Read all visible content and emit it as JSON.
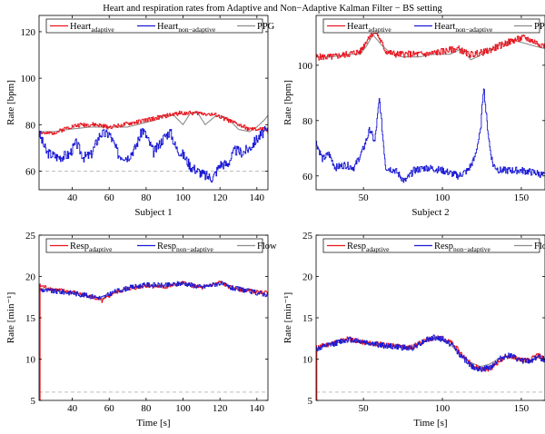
{
  "figure_title": "Heart and respiration rates from Adaptive and Non−Adaptive Kalman Filter − BS setting",
  "colors": {
    "adaptive": "#e8141e",
    "non_adaptive": "#1a1ad6",
    "reference": "#8c8c8c",
    "dashed": "#bdbdbd",
    "axis": "#000000"
  },
  "chart_data": [
    {
      "id": "hr1",
      "type": "line",
      "xlabel": "Subject 1",
      "ylabel": "Rate [bpm]",
      "xlim": [
        22,
        146
      ],
      "ylim": [
        52,
        127
      ],
      "xticks": [
        40,
        60,
        80,
        100,
        120,
        140
      ],
      "yticks": [
        60,
        80,
        100,
        120
      ],
      "dashed_y": 60,
      "legend": [
        {
          "base": "Heart",
          "sub": "adaptive",
          "color_key": "adaptive"
        },
        {
          "base": "Heart",
          "sub": "non−adaptive",
          "color_key": "non_adaptive"
        },
        {
          "base": "PPG",
          "sub": "",
          "color_key": "reference"
        }
      ],
      "series": [
        {
          "name": "PPG",
          "color_key": "reference",
          "noise": 0,
          "seed": 1,
          "x": [
            22,
            30,
            38,
            50,
            60,
            70,
            75,
            80,
            85,
            90,
            95,
            100,
            104,
            108,
            112,
            118,
            124,
            130,
            136,
            140,
            144,
            146
          ],
          "y": [
            77,
            77,
            78,
            79,
            79,
            79,
            80,
            81,
            82,
            84,
            84,
            80,
            85,
            85,
            80,
            84,
            83,
            78,
            77,
            79,
            82,
            84
          ]
        },
        {
          "name": "Heart adaptive",
          "color_key": "adaptive",
          "noise": 0.9,
          "seed": 2,
          "x": [
            22,
            26,
            32,
            38,
            45,
            52,
            60,
            68,
            74,
            80,
            86,
            92,
            98,
            104,
            110,
            118,
            124,
            130,
            136,
            140,
            146
          ],
          "y": [
            77,
            76,
            77,
            79,
            80,
            80,
            79,
            80,
            81,
            82,
            83,
            84,
            85,
            85,
            85,
            84,
            82,
            80,
            78,
            78,
            78
          ]
        },
        {
          "name": "Heart non-adaptive",
          "color_key": "non_adaptive",
          "noise": 2.2,
          "seed": 3,
          "x": [
            22,
            26,
            32,
            38,
            42,
            46,
            50,
            55,
            60,
            65,
            70,
            74,
            78,
            80,
            84,
            90,
            93,
            96,
            100,
            104,
            108,
            112,
            116,
            120,
            124,
            128,
            132,
            136,
            140,
            144,
            146
          ],
          "y": [
            76,
            68,
            66,
            67,
            72,
            66,
            67,
            76,
            76,
            67,
            66,
            70,
            78,
            75,
            68,
            75,
            77,
            70,
            67,
            62,
            60,
            58,
            57,
            63,
            63,
            69,
            68,
            70,
            74,
            77,
            77
          ]
        }
      ]
    },
    {
      "id": "hr2",
      "type": "line",
      "xlabel": "Subject 2",
      "ylabel": "Rate [bpm]",
      "xlim": [
        20,
        165
      ],
      "ylim": [
        55,
        118
      ],
      "xticks": [
        50,
        100,
        150
      ],
      "yticks": [
        60,
        80,
        100
      ],
      "dashed_y": null,
      "legend": [
        {
          "base": "Heart",
          "sub": "adaptive",
          "color_key": "adaptive"
        },
        {
          "base": "Heart",
          "sub": "non−adaptive",
          "color_key": "non_adaptive"
        },
        {
          "base": "PPG",
          "sub": "",
          "color_key": "reference"
        }
      ],
      "series": [
        {
          "name": "PPG",
          "color_key": "reference",
          "noise": 0,
          "seed": 4,
          "x": [
            20,
            30,
            40,
            48,
            52,
            56,
            62,
            68,
            75,
            85,
            95,
            105,
            112,
            118,
            122,
            128,
            135,
            145,
            152,
            158,
            165
          ],
          "y": [
            103,
            103,
            104,
            104,
            107,
            111,
            107,
            104,
            103,
            103,
            104,
            104,
            106,
            102,
            103,
            105,
            107,
            109,
            108,
            107,
            106
          ]
        },
        {
          "name": "Heart adaptive",
          "color_key": "adaptive",
          "noise": 1.2,
          "seed": 5,
          "x": [
            20,
            30,
            40,
            48,
            54,
            58,
            64,
            70,
            80,
            90,
            100,
            110,
            116,
            120,
            128,
            136,
            145,
            152,
            160,
            165
          ],
          "y": [
            103,
            103,
            104,
            105,
            111,
            112,
            105,
            104,
            104,
            104,
            105,
            106,
            104,
            104,
            105,
            107,
            109,
            110,
            108,
            107
          ]
        },
        {
          "name": "Heart non-adaptive",
          "color_key": "non_adaptive",
          "noise": 1.3,
          "seed": 6,
          "x": [
            20,
            24,
            28,
            32,
            38,
            44,
            50,
            54,
            57,
            60,
            62,
            64,
            70,
            76,
            82,
            90,
            100,
            110,
            116,
            120,
            124,
            126,
            128,
            130,
            132,
            136,
            140,
            150,
            160,
            165
          ],
          "y": [
            72,
            66,
            68,
            63,
            64,
            63,
            70,
            77,
            72,
            88,
            75,
            63,
            62,
            58,
            62,
            63,
            62,
            60,
            62,
            66,
            76,
            93,
            80,
            70,
            64,
            62,
            62,
            62,
            61,
            60
          ]
        }
      ]
    },
    {
      "id": "rr1",
      "type": "line",
      "xlabel": "Time [s]",
      "ylabel": "Rate [min⁻¹]",
      "xlim": [
        22,
        146
      ],
      "ylim": [
        5,
        25
      ],
      "xticks": [
        40,
        60,
        80,
        100,
        120,
        140
      ],
      "yticks": [
        5,
        10,
        15,
        20,
        25
      ],
      "dashed_y": 6,
      "legend": [
        {
          "base": "Resp",
          "sub": "adaptive",
          "color_key": "adaptive"
        },
        {
          "base": "Resp",
          "sub": "non−adaptive",
          "color_key": "non_adaptive"
        },
        {
          "base": "Flow",
          "sub": "",
          "color_key": "reference"
        }
      ],
      "series": [
        {
          "name": "Flow",
          "color_key": "reference",
          "noise": 0,
          "seed": 7,
          "x": [
            22,
            30,
            40,
            50,
            56,
            62,
            70,
            80,
            90,
            100,
            110,
            120,
            126,
            132,
            140,
            146
          ],
          "y": [
            18.6,
            18.3,
            18.0,
            17.6,
            17.3,
            18.0,
            18.6,
            19.0,
            18.9,
            19.1,
            18.7,
            19.3,
            18.7,
            18.5,
            18.3,
            17.6
          ]
        },
        {
          "name": "Resp adaptive",
          "color_key": "adaptive",
          "noise": 0.25,
          "seed": 8,
          "x": [
            22,
            30,
            40,
            50,
            56,
            62,
            70,
            80,
            90,
            100,
            110,
            120,
            126,
            132,
            140,
            146
          ],
          "y": [
            18.9,
            18.4,
            18.1,
            17.6,
            17.0,
            18.0,
            18.5,
            18.9,
            18.7,
            19.2,
            18.6,
            19.3,
            18.6,
            18.4,
            18.1,
            18.0
          ]
        },
        {
          "name": "Resp non-adaptive",
          "color_key": "non_adaptive",
          "noise": 0.3,
          "seed": 9,
          "x": [
            22,
            30,
            40,
            50,
            56,
            62,
            70,
            80,
            90,
            100,
            110,
            120,
            126,
            132,
            140,
            146
          ],
          "y": [
            18.4,
            18.2,
            18.0,
            17.6,
            17.4,
            18.1,
            18.6,
            19.0,
            18.9,
            19.2,
            18.7,
            19.2,
            18.6,
            18.4,
            18.0,
            17.8
          ]
        }
      ],
      "spike": {
        "x": 22.5,
        "from": 5,
        "to": 19
      }
    },
    {
      "id": "rr2",
      "type": "line",
      "xlabel": "Time [s]",
      "ylabel": "Rate [min⁻¹]",
      "xlim": [
        20,
        165
      ],
      "ylim": [
        5,
        25
      ],
      "xticks": [
        50,
        100,
        150
      ],
      "yticks": [
        5,
        10,
        15,
        20,
        25
      ],
      "dashed_y": 6,
      "legend": [
        {
          "base": "Resp",
          "sub": "adaptive",
          "color_key": "adaptive"
        },
        {
          "base": "Resp",
          "sub": "non−adaptive",
          "color_key": "non_adaptive"
        },
        {
          "base": "Flow",
          "sub": "",
          "color_key": "reference"
        }
      ],
      "series": [
        {
          "name": "Flow",
          "color_key": "reference",
          "noise": 0,
          "seed": 10,
          "x": [
            20,
            30,
            40,
            50,
            60,
            70,
            80,
            90,
            95,
            100,
            106,
            112,
            118,
            124,
            130,
            136,
            142,
            148,
            155,
            160,
            165
          ],
          "y": [
            11.3,
            11.8,
            12.3,
            11.9,
            11.6,
            11.5,
            11.3,
            12.3,
            12.5,
            12.4,
            11.6,
            10.4,
            9.6,
            9.1,
            9.4,
            10.1,
            10.3,
            10.0,
            9.5,
            10.2,
            10.0
          ]
        },
        {
          "name": "Resp adaptive",
          "color_key": "adaptive",
          "noise": 0.3,
          "seed": 11,
          "x": [
            20,
            30,
            40,
            50,
            60,
            70,
            80,
            90,
            95,
            100,
            106,
            112,
            118,
            124,
            130,
            136,
            142,
            148,
            155,
            160,
            165
          ],
          "y": [
            11.4,
            11.9,
            12.5,
            12.0,
            11.8,
            11.6,
            11.4,
            12.3,
            12.6,
            12.5,
            11.9,
            10.6,
            9.4,
            8.8,
            8.8,
            9.8,
            10.4,
            10.0,
            9.8,
            10.5,
            10.0
          ]
        },
        {
          "name": "Resp non-adaptive",
          "color_key": "non_adaptive",
          "noise": 0.35,
          "seed": 12,
          "x": [
            20,
            30,
            40,
            50,
            60,
            70,
            80,
            90,
            95,
            100,
            106,
            112,
            118,
            124,
            130,
            136,
            142,
            148,
            155,
            160,
            165
          ],
          "y": [
            11.2,
            11.8,
            12.4,
            12.1,
            11.7,
            11.5,
            11.3,
            12.4,
            12.6,
            12.4,
            11.7,
            10.3,
            9.2,
            8.7,
            9.0,
            10.0,
            10.5,
            9.9,
            9.7,
            10.3,
            9.9
          ]
        }
      ],
      "spike": {
        "x": 20.4,
        "from": 5,
        "to": 11
      }
    }
  ]
}
